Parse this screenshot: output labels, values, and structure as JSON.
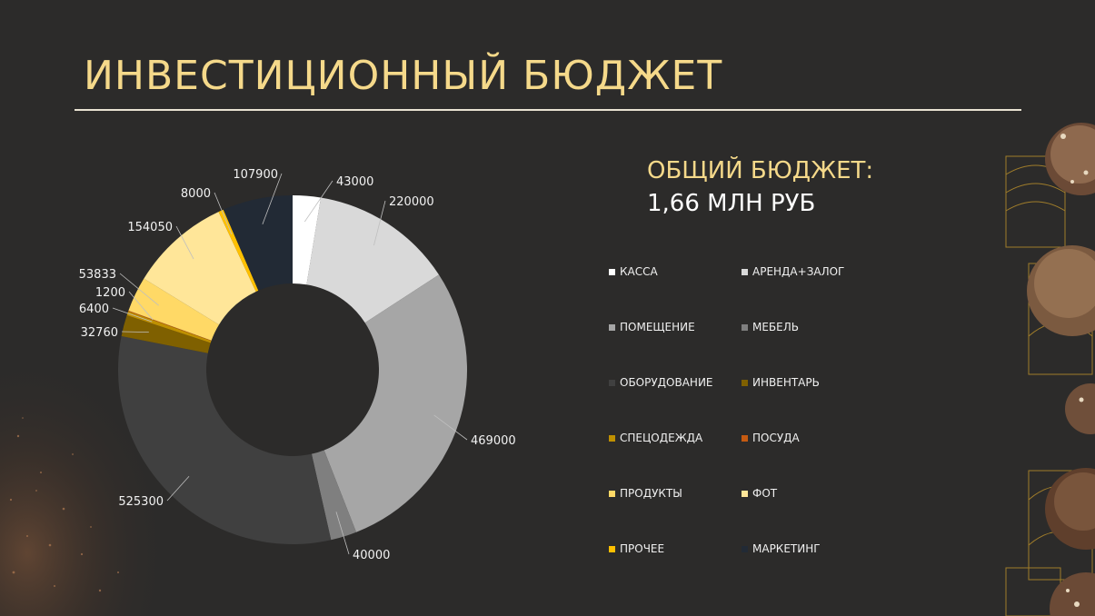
{
  "slide": {
    "title": "ИНВЕСТИЦИОННЫЙ БЮДЖЕТ",
    "budget_label": "ОБЩИЙ БЮДЖЕТ:",
    "budget_value": "1,66 МЛН РУБ"
  },
  "chart_data": {
    "type": "pie",
    "subtype": "doughnut",
    "legend_position": "right",
    "categories": [
      "КАССА",
      "АРЕНДА+ЗАЛОГ",
      "ПОМЕЩЕНИЕ",
      "МЕБЕЛЬ",
      "ОБОРУДОВАНИЕ",
      "ИНВЕНТАРЬ",
      "СПЕЦОДЕЖДА",
      "ПОСУДА",
      "ПРОДУКТЫ",
      "ФОТ",
      "ПРОЧЕЕ",
      "МАРКЕТИНГ"
    ],
    "values": [
      43000,
      220000,
      469000,
      40000,
      525300,
      32760,
      6400,
      1200,
      53833,
      154050,
      8000,
      107900
    ],
    "colors": [
      "#ffffff",
      "#d9d9d9",
      "#a6a6a6",
      "#7f7f7f",
      "#404040",
      "#7f6000",
      "#bf9000",
      "#c55a11",
      "#ffd966",
      "#ffe699",
      "#ffc000",
      "#222a35"
    ],
    "data_labels": [
      "43000",
      "220000",
      "469000",
      "40000",
      "525300",
      "32760",
      "6400",
      "1200",
      "53833",
      "154050",
      "8000",
      "107900"
    ]
  }
}
